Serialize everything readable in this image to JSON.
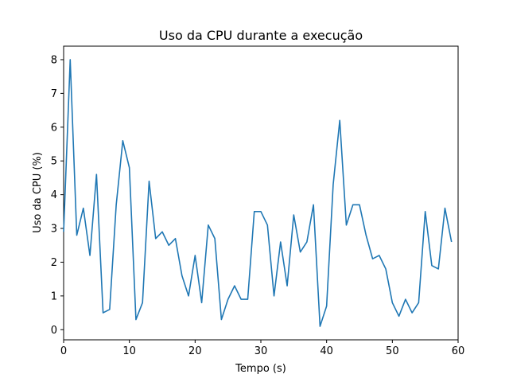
{
  "chart_data": {
    "type": "line",
    "title": "Uso da CPU durante a execução",
    "xlabel": "Tempo (s)",
    "ylabel": "Uso da CPU (%)",
    "xlim": [
      0,
      60
    ],
    "ylim": [
      -0.3,
      8.4
    ],
    "xticks": [
      0,
      10,
      20,
      30,
      40,
      50,
      60
    ],
    "yticks": [
      0,
      1,
      2,
      3,
      4,
      5,
      6,
      7,
      8
    ],
    "grid": false,
    "legend": "none",
    "line_color": "#1f77b4",
    "series": [
      {
        "x": [
          0,
          1,
          2,
          3,
          4,
          5,
          6,
          7,
          8,
          9,
          10,
          11,
          12,
          13,
          14,
          15,
          16,
          17,
          18,
          19,
          20,
          21,
          22,
          23,
          24,
          25,
          26,
          27,
          28,
          29,
          30,
          31,
          32,
          33,
          34,
          35,
          36,
          37,
          38,
          39,
          40,
          41,
          42,
          43,
          44,
          45,
          46,
          47,
          48,
          49,
          50,
          51,
          52,
          53,
          54,
          55,
          56,
          57,
          58,
          59
        ],
        "values": [
          2.9,
          8.0,
          2.8,
          3.6,
          2.2,
          4.6,
          0.5,
          0.6,
          3.7,
          5.6,
          4.8,
          0.3,
          0.8,
          4.4,
          2.7,
          2.9,
          2.5,
          2.7,
          1.6,
          1.0,
          2.2,
          0.8,
          3.1,
          2.7,
          0.3,
          0.9,
          1.3,
          0.9,
          0.9,
          3.5,
          3.5,
          3.1,
          1.0,
          2.6,
          1.3,
          3.4,
          2.3,
          2.6,
          3.7,
          0.1,
          0.7,
          4.3,
          6.2,
          3.1,
          3.7,
          3.7,
          2.8,
          2.1,
          2.2,
          1.8,
          0.8,
          0.4,
          0.9,
          0.5,
          0.8,
          3.5,
          1.9,
          1.8,
          3.6,
          2.6
        ]
      }
    ]
  }
}
